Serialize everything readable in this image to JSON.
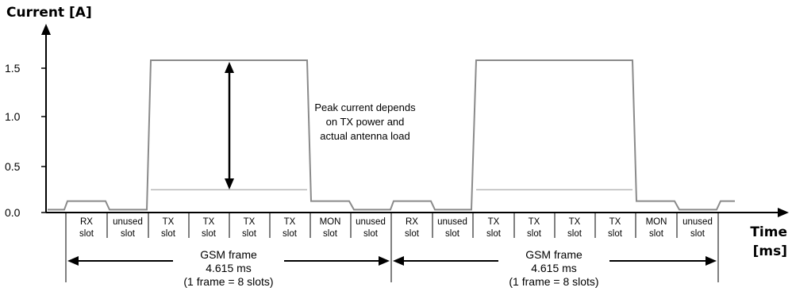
{
  "y_axis": {
    "title": "Current [A]",
    "ticks": [
      "0.0",
      "0.5",
      "1.0",
      "1.5"
    ]
  },
  "x_axis": {
    "title_line1": "Time",
    "title_line2": "[ms]"
  },
  "slots": [
    {
      "line1": "RX",
      "line2": "slot"
    },
    {
      "line1": "unused",
      "line2": "slot"
    },
    {
      "line1": "TX",
      "line2": "slot"
    },
    {
      "line1": "TX",
      "line2": "slot"
    },
    {
      "line1": "TX",
      "line2": "slot"
    },
    {
      "line1": "TX",
      "line2": "slot"
    },
    {
      "line1": "MON",
      "line2": "slot"
    },
    {
      "line1": "unused",
      "line2": "slot"
    },
    {
      "line1": "RX",
      "line2": "slot"
    },
    {
      "line1": "unused",
      "line2": "slot"
    },
    {
      "line1": "TX",
      "line2": "slot"
    },
    {
      "line1": "TX",
      "line2": "slot"
    },
    {
      "line1": "TX",
      "line2": "slot"
    },
    {
      "line1": "TX",
      "line2": "slot"
    },
    {
      "line1": "MON",
      "line2": "slot"
    },
    {
      "line1": "unused",
      "line2": "slot"
    }
  ],
  "annotation": {
    "line1": "Peak current depends",
    "line2": "on TX power and",
    "line3": "actual antenna load"
  },
  "frames": [
    {
      "title": "GSM frame",
      "duration": "4.615 ms",
      "note": "(1 frame = 8 slots)"
    },
    {
      "title": "GSM frame",
      "duration": "4.615 ms",
      "note": "(1 frame = 8 slots)"
    }
  ],
  "waveform": {
    "levels_A": {
      "base": 0.03,
      "rx_mon": 0.12,
      "tx_peak": 1.6,
      "tx_low": 0.24
    }
  },
  "colors": {
    "trace": "#8a8a8a",
    "trace_low": "#b8b8b8",
    "axis": "#000000"
  }
}
